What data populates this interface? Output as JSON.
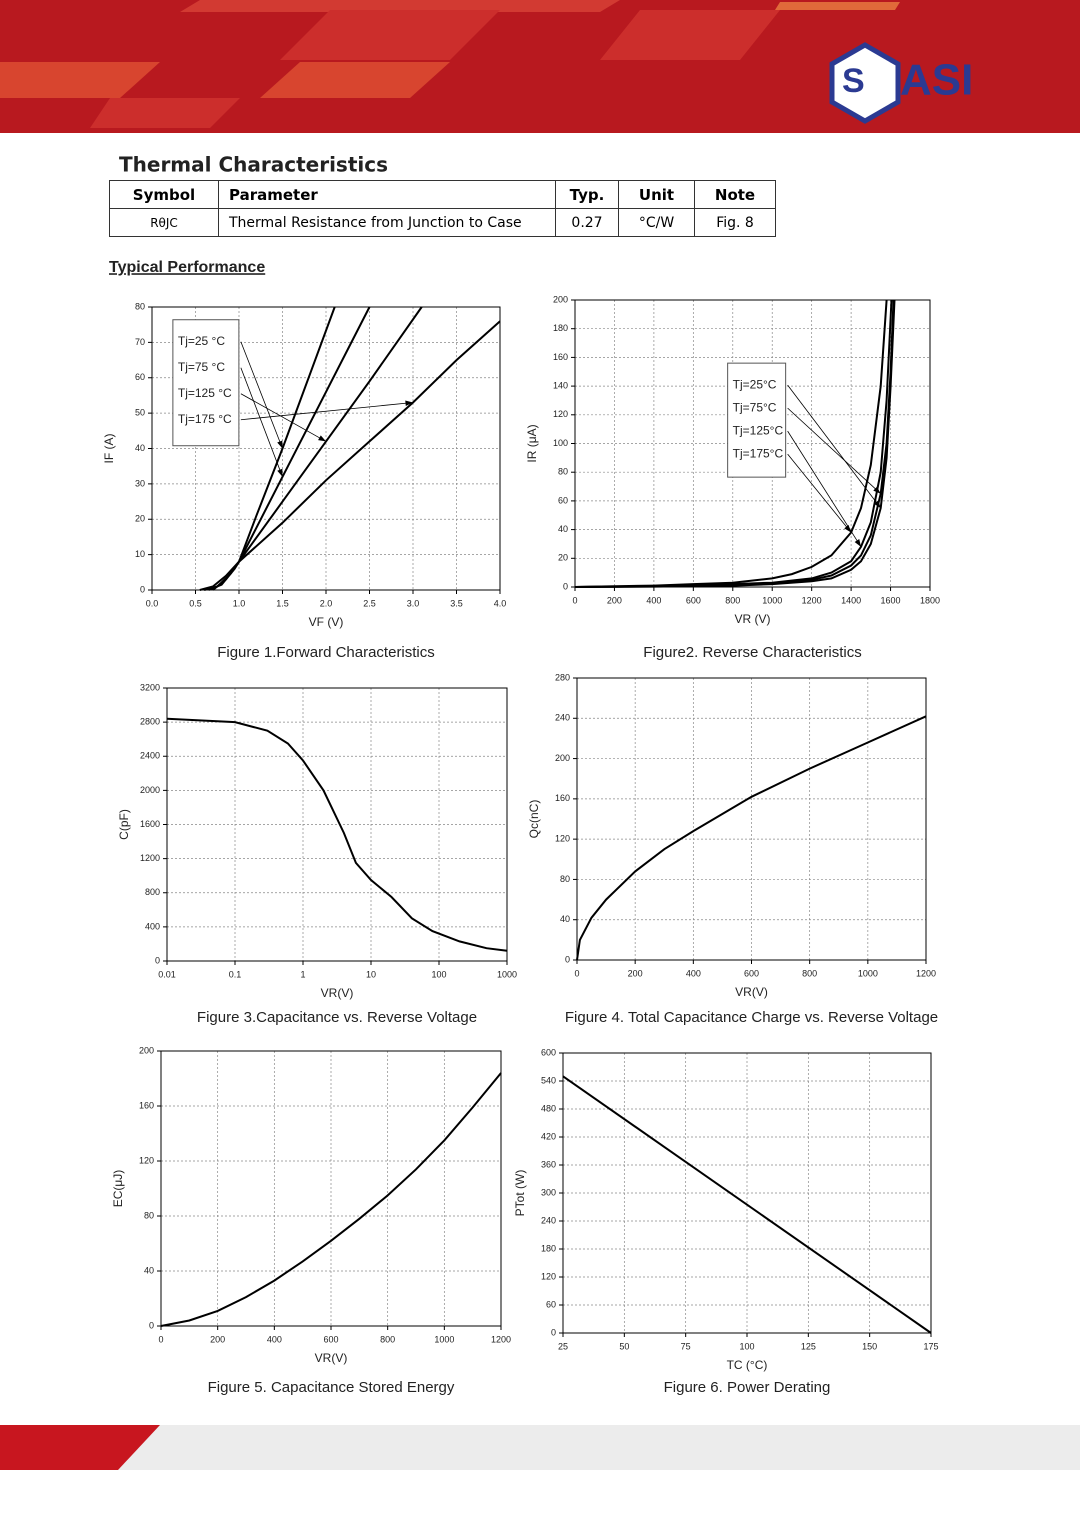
{
  "header": {
    "logo_text": "ASI"
  },
  "section_title": "Thermal Characteristics",
  "table": {
    "columns": [
      "Symbol",
      "Parameter",
      "Typ.",
      "Unit",
      "Note"
    ],
    "rows": [
      [
        "RθJC",
        "Thermal Resistance from Junction to Case",
        "0.27",
        "°C/W",
        "Fig. 8"
      ]
    ]
  },
  "subtitle": "Typical Performance",
  "chart_data": [
    {
      "type": "line",
      "caption": "Figure 1.Forward Characteristics",
      "xlabel": "VF (V)",
      "ylabel": "IF (A)",
      "xlim": [
        0,
        4
      ],
      "ylim": [
        0,
        80
      ],
      "xticks": [
        {
          "value": 0,
          "label": "0.0"
        },
        0.5,
        {
          "value": 1,
          "label": "1.0"
        },
        1.5,
        {
          "value": 2,
          "label": "2.0"
        },
        2.5,
        {
          "value": 3,
          "label": "3.0"
        },
        3.5,
        {
          "value": 4,
          "label": "4.0"
        }
      ],
      "yticks": [
        0,
        10,
        20,
        30,
        40,
        50,
        60,
        70,
        80
      ],
      "grid": true,
      "legend": "upper left",
      "series": [
        {
          "name": "Tj=25 °C",
          "color": "#000000",
          "x": [
            0.55,
            0.7,
            0.85,
            1.0,
            1.2,
            1.5,
            1.8,
            2.1
          ],
          "values": [
            0,
            1,
            4,
            8,
            21,
            40,
            60,
            80
          ]
        },
        {
          "name": "Tj=75 °C",
          "color": "#000000",
          "x": [
            0.6,
            0.75,
            0.9,
            1.0,
            1.5,
            2.0,
            2.5
          ],
          "values": [
            0,
            1,
            4.5,
            8,
            32,
            56,
            80
          ]
        },
        {
          "name": "Tj=125 °C",
          "color": "#000000",
          "x": [
            0.65,
            0.8,
            0.95,
            1.0,
            1.5,
            2.0,
            2.5,
            3.1
          ],
          "values": [
            0,
            1.5,
            6,
            8,
            25,
            42,
            59,
            80
          ]
        },
        {
          "name": "Tj=175 °C",
          "color": "#000000",
          "x": [
            0.7,
            0.85,
            1.0,
            1.5,
            2.0,
            2.5,
            3.0,
            3.5,
            4.0
          ],
          "values": [
            0,
            3,
            8,
            19,
            31,
            42,
            53,
            65,
            76
          ]
        }
      ]
    },
    {
      "type": "line",
      "caption": "Figure2. Reverse Characteristics",
      "xlabel": "VR (V)",
      "ylabel": "IR (μA)",
      "xlim": [
        0,
        1800
      ],
      "ylim": [
        0,
        200
      ],
      "xticks": [
        0,
        200,
        400,
        600,
        800,
        1000,
        1200,
        1400,
        1600,
        1800
      ],
      "yticks": [
        0,
        20,
        40,
        60,
        80,
        100,
        120,
        140,
        160,
        180,
        200
      ],
      "grid": true,
      "legend": "center right",
      "series": [
        {
          "name": "Tj=25°C",
          "color": "#000000",
          "x": [
            0,
            400,
            800,
            1000,
            1200,
            1300,
            1400,
            1450,
            1500,
            1550,
            1580,
            1600,
            1620
          ],
          "values": [
            0,
            0.3,
            1,
            2,
            4,
            6,
            12,
            18,
            30,
            55,
            90,
            140,
            200
          ]
        },
        {
          "name": "Tj=75°C",
          "color": "#000000",
          "x": [
            0,
            400,
            800,
            1000,
            1200,
            1300,
            1400,
            1450,
            1500,
            1550,
            1580,
            1600,
            1615
          ],
          "values": [
            0,
            0.5,
            1.5,
            2.5,
            5,
            8,
            15,
            22,
            36,
            65,
            100,
            150,
            200
          ]
        },
        {
          "name": "Tj=125°C",
          "color": "#000000",
          "x": [
            0,
            200,
            400,
            600,
            800,
            1000,
            1200,
            1300,
            1400,
            1450,
            1500,
            1550,
            1580,
            1605
          ],
          "values": [
            0,
            0.3,
            0.5,
            1,
            2,
            3,
            6,
            10,
            18,
            28,
            45,
            80,
            130,
            200
          ]
        },
        {
          "name": "Tj=175°C",
          "color": "#000000",
          "x": [
            0,
            200,
            400,
            600,
            800,
            1000,
            1100,
            1200,
            1300,
            1400,
            1450,
            1500,
            1550,
            1580
          ],
          "values": [
            0,
            0.5,
            1,
            2,
            3,
            6,
            9,
            14,
            22,
            38,
            55,
            85,
            140,
            200
          ]
        }
      ]
    },
    {
      "type": "line",
      "caption": "Figure 3.Capacitance vs. Reverse Voltage",
      "xlabel": "VR(V)",
      "ylabel": "C(pF)",
      "xscale": "log",
      "xlim": [
        0.01,
        1000
      ],
      "ylim": [
        0,
        3200
      ],
      "xticks": [
        0.01,
        0.1,
        1,
        10,
        100,
        1000
      ],
      "yticks": [
        0,
        400,
        800,
        1200,
        1600,
        2000,
        2400,
        2800,
        3200
      ],
      "grid": true,
      "series": [
        {
          "color": "#000000",
          "x": [
            0.01,
            0.1,
            0.3,
            0.6,
            1,
            2,
            4,
            6,
            10,
            20,
            40,
            80,
            200,
            500,
            1000
          ],
          "values": [
            2840,
            2800,
            2700,
            2550,
            2350,
            2000,
            1500,
            1150,
            950,
            750,
            500,
            350,
            230,
            150,
            120
          ]
        }
      ]
    },
    {
      "type": "line",
      "caption": "Figure 4. Total Capacitance Charge vs. Reverse Voltage",
      "xlabel": "VR(V)",
      "ylabel": "Qc(nC)",
      "xlim": [
        0,
        1200
      ],
      "ylim": [
        0,
        280
      ],
      "xticks": [
        0,
        200,
        400,
        600,
        800,
        1000,
        1200
      ],
      "yticks": [
        0,
        40,
        80,
        120,
        160,
        200,
        240,
        280
      ],
      "grid": true,
      "series": [
        {
          "color": "#000000",
          "x": [
            0,
            10,
            50,
            100,
            200,
            300,
            400,
            600,
            800,
            1000,
            1200
          ],
          "values": [
            0,
            20,
            42,
            60,
            88,
            110,
            128,
            162,
            190,
            216,
            242
          ]
        }
      ]
    },
    {
      "type": "line",
      "caption": "Figure 5. Capacitance Stored Energy",
      "xlabel": "VR(V)",
      "ylabel": "EC(μJ)",
      "xlim": [
        0,
        1200
      ],
      "ylim": [
        0,
        200
      ],
      "xticks": [
        0,
        200,
        400,
        600,
        800,
        1000,
        1200
      ],
      "yticks": [
        0,
        40,
        80,
        120,
        160,
        200
      ],
      "grid": true,
      "series": [
        {
          "color": "#000000",
          "x": [
            0,
            100,
            200,
            300,
            400,
            500,
            600,
            700,
            800,
            900,
            1000,
            1100,
            1200
          ],
          "values": [
            0,
            4,
            11,
            21,
            33,
            47,
            62,
            78,
            95,
            114,
            135,
            159,
            184
          ]
        }
      ]
    },
    {
      "type": "line",
      "caption": "Figure 6. Power Derating",
      "xlabel": "TC (°C)",
      "ylabel": "PTot (W)",
      "xlim": [
        25,
        175
      ],
      "ylim": [
        0,
        600
      ],
      "xticks": [
        25,
        50,
        75,
        100,
        125,
        150,
        175
      ],
      "yticks": [
        0,
        60,
        120,
        180,
        240,
        300,
        360,
        420,
        480,
        540,
        600
      ],
      "grid": true,
      "series": [
        {
          "color": "#000000",
          "x": [
            25,
            175
          ],
          "values": [
            550,
            0
          ]
        }
      ]
    }
  ]
}
